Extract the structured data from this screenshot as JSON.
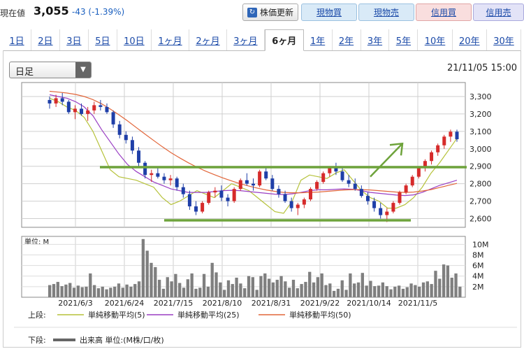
{
  "quote": {
    "label": "現在値",
    "price": "3,055",
    "change": "-43 (-1.39%)"
  },
  "buttons": {
    "refresh": "株価更新",
    "spot_buy": "現物買",
    "spot_sell": "現物売",
    "margin_buy": "信用買",
    "margin_sell": "信用売"
  },
  "colors": {
    "up_candle": "#d62b2b",
    "down_candle": "#1f3fa8",
    "ma5": "#b6c23a",
    "ma25": "#9a3fc4",
    "ma50": "#e2663a",
    "annotation": "#6ea33b",
    "volume": "#7f7f7f"
  },
  "tabs": [
    "1日",
    "2日",
    "3日",
    "5日",
    "10日",
    "1ヶ月",
    "2ヶ月",
    "3ヶ月",
    "6ヶ月",
    "1年",
    "2年",
    "3年",
    "5年",
    "10年",
    "20年",
    "30年"
  ],
  "active_tab": "6ヶ月",
  "period_select": {
    "value": "日足"
  },
  "timestamp": "21/11/05 15:00",
  "chart_data": [
    {
      "type": "line",
      "title": "",
      "y_ticks": [
        "3,300",
        "3,200",
        "3,100",
        "3,000",
        "2,900",
        "2,800",
        "2,700",
        "2,600"
      ],
      "ylim": [
        2550,
        3380
      ],
      "x_ticks": [
        "2021/6/3",
        "2021/6/24",
        "2021/7/15",
        "2021/8/10",
        "2021/8/31",
        "2021/9/22",
        "2021/10/14",
        "2021/11/5"
      ],
      "grid": true,
      "series": [
        {
          "name": "単純移動平均(5)",
          "values": [
            3290,
            3270,
            3240,
            3220,
            3180,
            3100,
            2990,
            2880,
            2840,
            2830,
            2820,
            2800,
            2780,
            2720,
            2680,
            2700,
            2730,
            2760,
            2740,
            2720,
            2760,
            2800,
            2780,
            2760,
            2720,
            2680,
            2640,
            2630,
            2700,
            2820,
            2850,
            2840,
            2830,
            2860,
            2880,
            2820,
            2760,
            2720,
            2700,
            2660,
            2660,
            2680,
            2720,
            2780,
            2860,
            2920,
            2990,
            3060
          ]
        },
        {
          "name": "単純移動平均(25)",
          "values": [
            3310,
            3300,
            3290,
            3270,
            3240,
            3190,
            3110,
            3040,
            2970,
            2910,
            2870,
            2840,
            2810,
            2790,
            2770,
            2760,
            2750,
            2750,
            2750,
            2755,
            2760,
            2762,
            2760,
            2755,
            2750,
            2745,
            2740,
            2738,
            2742,
            2750,
            2760,
            2765,
            2765,
            2768,
            2770,
            2768,
            2760,
            2750,
            2745,
            2740,
            2735,
            2732,
            2736,
            2750,
            2770,
            2790,
            2805,
            2820
          ]
        },
        {
          "name": "単純移動平均(50)",
          "values": [
            3330,
            3325,
            3320,
            3312,
            3300,
            3282,
            3258,
            3228,
            3195,
            3160,
            3122,
            3085,
            3048,
            3012,
            2978,
            2948,
            2920,
            2895,
            2872,
            2852,
            2833,
            2816,
            2800,
            2786,
            2774,
            2764,
            2756,
            2750,
            2748,
            2748,
            2750,
            2752,
            2756,
            2760,
            2764,
            2766,
            2766,
            2764,
            2760,
            2756,
            2752,
            2750,
            2752,
            2758,
            2766,
            2778,
            2790,
            2802
          ]
        }
      ],
      "candles": [
        [
          3280,
          3300,
          3230,
          3260
        ],
        [
          3260,
          3310,
          3240,
          3290
        ],
        [
          3290,
          3320,
          3250,
          3270
        ],
        [
          3270,
          3280,
          3200,
          3210
        ],
        [
          3210,
          3250,
          3170,
          3230
        ],
        [
          3230,
          3260,
          3190,
          3200
        ],
        [
          3200,
          3240,
          3160,
          3220
        ],
        [
          3220,
          3270,
          3200,
          3250
        ],
        [
          3250,
          3280,
          3220,
          3240
        ],
        [
          3240,
          3260,
          3200,
          3210
        ],
        [
          3210,
          3220,
          3120,
          3140
        ],
        [
          3140,
          3160,
          3060,
          3080
        ],
        [
          3080,
          3100,
          3030,
          3050
        ],
        [
          3050,
          3070,
          2970,
          2990
        ],
        [
          2990,
          3010,
          2900,
          2920
        ],
        [
          2920,
          2930,
          2830,
          2850
        ],
        [
          2850,
          2880,
          2810,
          2860
        ],
        [
          2860,
          2890,
          2830,
          2840
        ],
        [
          2840,
          2860,
          2800,
          2820
        ],
        [
          2820,
          2850,
          2790,
          2830
        ],
        [
          2830,
          2840,
          2760,
          2780
        ],
        [
          2780,
          2800,
          2720,
          2740
        ],
        [
          2740,
          2760,
          2650,
          2670
        ],
        [
          2670,
          2700,
          2620,
          2640
        ],
        [
          2640,
          2700,
          2630,
          2690
        ],
        [
          2690,
          2760,
          2680,
          2750
        ],
        [
          2750,
          2780,
          2720,
          2760
        ],
        [
          2760,
          2790,
          2700,
          2720
        ],
        [
          2720,
          2740,
          2670,
          2700
        ],
        [
          2700,
          2780,
          2690,
          2770
        ],
        [
          2770,
          2830,
          2760,
          2820
        ],
        [
          2820,
          2860,
          2790,
          2800
        ],
        [
          2800,
          2830,
          2760,
          2790
        ],
        [
          2790,
          2880,
          2780,
          2870
        ],
        [
          2870,
          2890,
          2820,
          2830
        ],
        [
          2830,
          2850,
          2760,
          2770
        ],
        [
          2770,
          2790,
          2720,
          2740
        ],
        [
          2740,
          2760,
          2690,
          2700
        ],
        [
          2700,
          2720,
          2640,
          2660
        ],
        [
          2660,
          2690,
          2620,
          2680
        ],
        [
          2680,
          2720,
          2660,
          2710
        ],
        [
          2710,
          2780,
          2700,
          2770
        ],
        [
          2770,
          2820,
          2760,
          2810
        ],
        [
          2810,
          2870,
          2800,
          2860
        ],
        [
          2860,
          2900,
          2840,
          2890
        ],
        [
          2890,
          2920,
          2850,
          2870
        ],
        [
          2870,
          2890,
          2810,
          2820
        ],
        [
          2820,
          2850,
          2780,
          2800
        ],
        [
          2800,
          2830,
          2760,
          2770
        ],
        [
          2770,
          2790,
          2720,
          2730
        ],
        [
          2730,
          2750,
          2680,
          2700
        ],
        [
          2700,
          2720,
          2640,
          2660
        ],
        [
          2660,
          2690,
          2600,
          2620
        ],
        [
          2620,
          2660,
          2580,
          2640
        ],
        [
          2640,
          2700,
          2630,
          2690
        ],
        [
          2690,
          2760,
          2680,
          2750
        ],
        [
          2750,
          2800,
          2740,
          2790
        ],
        [
          2790,
          2850,
          2780,
          2840
        ],
        [
          2840,
          2900,
          2830,
          2890
        ],
        [
          2890,
          2940,
          2870,
          2930
        ],
        [
          2930,
          2990,
          2910,
          2980
        ],
        [
          2980,
          3030,
          2960,
          3020
        ],
        [
          3020,
          3080,
          3000,
          3070
        ],
        [
          3070,
          3110,
          3040,
          3098
        ],
        [
          3098,
          3110,
          3040,
          3055
        ]
      ],
      "annotations": [
        {
          "kind": "hline",
          "value": 2895
        },
        {
          "kind": "hline",
          "value": 2590
        },
        {
          "kind": "arrow",
          "from_value": 2840,
          "to_value": 3030
        }
      ]
    },
    {
      "type": "bar",
      "title": "",
      "unit_label": "単位: M",
      "y_ticks": [
        "10M",
        "8M",
        "6M",
        "4M",
        "2M"
      ],
      "ylim": [
        0,
        11.5
      ],
      "values": [
        2.3,
        2.5,
        2.9,
        2.1,
        2.4,
        2.7,
        1.8,
        2.2,
        1.9,
        2.0,
        4.5,
        2.3,
        1.7,
        2.0,
        1.5,
        1.8,
        2.0,
        2.6,
        1.8,
        2.4,
        2.0,
        2.5,
        3.0,
        11.0,
        8.8,
        6.5,
        5.7,
        3.3,
        1.6,
        3.8,
        3.0,
        4.4,
        2.7,
        1.8,
        3.4,
        4.5,
        1.6,
        1.8,
        4.4,
        2.0,
        6.5,
        4.7,
        2.8,
        1.4,
        3.2,
        2.5,
        3.7,
        2.6,
        1.7,
        4.0,
        3.8,
        1.4,
        4.0,
        4.5,
        3.5,
        2.8,
        3.3,
        4.0,
        3.0,
        1.8,
        3.3,
        1.7,
        2.5,
        2.9,
        4.8,
        2.8,
        3.8,
        4.5,
        2.3,
        2.6,
        1.2,
        1.6,
        3.2,
        1.4,
        4.5,
        2.6,
        2.8,
        4.6,
        2.2,
        3.1,
        2.1,
        2.2,
        2.8,
        2.1,
        1.5,
        2.0,
        2.2,
        1.6,
        1.9,
        2.6,
        2.3,
        2.0,
        2.8,
        3.0,
        2.5,
        5.0,
        3.5,
        6.2,
        6.0,
        3.7,
        4.5,
        2.0
      ]
    }
  ],
  "legend": {
    "upper_label": "上段:",
    "lower_label": "下段:",
    "ma5": "単純移動平均(5)",
    "ma25": "単純移動平均(25)",
    "ma50": "単純移動平均(50)",
    "volume": "出来高 単位:(M株/口/枚)"
  }
}
